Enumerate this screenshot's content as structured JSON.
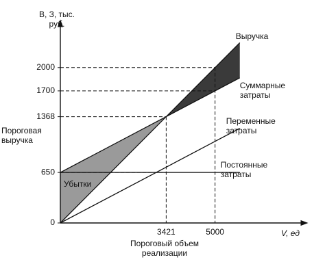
{
  "chart_data": {
    "type": "line",
    "y_label": "В, З, тыс. руб.",
    "x_label": "V, ед",
    "x": [
      0,
      3421,
      5000,
      5800
    ],
    "series": [
      {
        "name": "Выручка",
        "color": "#111111",
        "values": [
          0,
          1368,
          2000,
          2320
        ]
      },
      {
        "name": "Суммарные затраты",
        "color": "#111111",
        "values": [
          650,
          1368,
          1700,
          1868
        ]
      },
      {
        "name": "Переменные затраты",
        "color": "#111111",
        "values": [
          0,
          718,
          1050,
          1218
        ]
      },
      {
        "name": "Постоянные затраты",
        "color": "#111111",
        "values": [
          650,
          650,
          650,
          650
        ]
      }
    ],
    "xlim": [
      0,
      7800
    ],
    "ylim": [
      0,
      2500
    ],
    "xticks": [
      3421,
      5000
    ],
    "yticks": [
      0,
      650,
      1368,
      1700,
      2000
    ],
    "annotations": [
      "Пороговая выручка",
      "Убытки",
      "Пороговый объем реализации"
    ]
  }
}
